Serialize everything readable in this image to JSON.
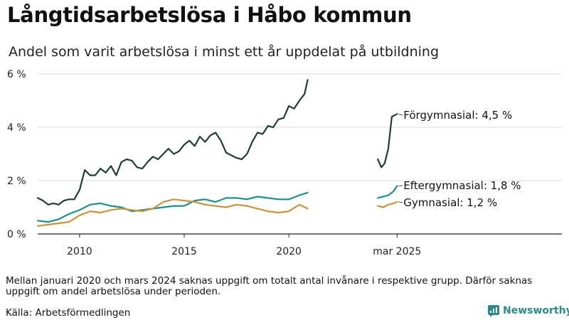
{
  "title": "Långtidsarbetslösa i Håbo kommun",
  "subtitle": "Andel som varit arbetslösa i minst ett år uppdelat på utbildning",
  "note": "Mellan januari 2020 och mars 2024 saknas uppgift om totalt antal invånare i respektive grupp. Därför saknas uppgift om andel arbetslösa under perioden.",
  "source": "Källa: Arbetsförmedlingen",
  "brand": {
    "name": "Newsworthy",
    "icon": "newsworthy-logo-icon"
  },
  "colors": {
    "forgymnasial": "#1f3d36",
    "eftergymnasial": "#1a9088",
    "gymnasial": "#c9943b",
    "grid": "#dcdcdc",
    "axis": "#222222"
  },
  "chart_data": {
    "type": "line",
    "title": "Långtidsarbetslösa i Håbo kommun",
    "subtitle": "Andel som varit arbetslösa i minst ett år uppdelat på utbildning",
    "xlabel": "",
    "ylabel": "",
    "ylim": [
      0,
      6
    ],
    "xlim": [
      2008.0,
      2025.5
    ],
    "y_ticks": [
      0,
      2,
      4,
      6
    ],
    "y_tick_labels": [
      "0 %",
      "2 %",
      "4 %",
      "6 %"
    ],
    "x_ticks": [
      2010,
      2015,
      2020,
      2025.17
    ],
    "x_tick_labels": [
      "2010",
      "2015",
      "2020",
      "mar 2025"
    ],
    "grid": "horizontal",
    "legend": "end-labels",
    "series": [
      {
        "name": "Förgymnasial",
        "end_label": "Förgymnasial: 4,5 %",
        "color": "#1f3d36",
        "segments": [
          [
            [
              2008.0,
              1.35
            ],
            [
              2008.25,
              1.25
            ],
            [
              2008.5,
              1.1
            ],
            [
              2008.75,
              1.15
            ],
            [
              2009.0,
              1.1
            ],
            [
              2009.25,
              1.25
            ],
            [
              2009.5,
              1.3
            ],
            [
              2009.75,
              1.3
            ],
            [
              2010.0,
              1.65
            ],
            [
              2010.25,
              2.4
            ],
            [
              2010.5,
              2.2
            ],
            [
              2010.75,
              2.2
            ],
            [
              2011.0,
              2.45
            ],
            [
              2011.25,
              2.3
            ],
            [
              2011.5,
              2.55
            ],
            [
              2011.75,
              2.2
            ],
            [
              2012.0,
              2.7
            ],
            [
              2012.25,
              2.8
            ],
            [
              2012.5,
              2.75
            ],
            [
              2012.75,
              2.5
            ],
            [
              2013.0,
              2.45
            ],
            [
              2013.25,
              2.7
            ],
            [
              2013.5,
              2.9
            ],
            [
              2013.75,
              2.8
            ],
            [
              2014.0,
              3.0
            ],
            [
              2014.25,
              3.2
            ],
            [
              2014.5,
              3.0
            ],
            [
              2014.75,
              3.1
            ],
            [
              2015.0,
              3.35
            ],
            [
              2015.25,
              3.5
            ],
            [
              2015.5,
              3.3
            ],
            [
              2015.75,
              3.65
            ],
            [
              2016.0,
              3.45
            ],
            [
              2016.25,
              3.7
            ],
            [
              2016.5,
              3.8
            ],
            [
              2016.75,
              3.5
            ],
            [
              2017.0,
              3.05
            ],
            [
              2017.25,
              2.95
            ],
            [
              2017.5,
              2.85
            ],
            [
              2017.75,
              2.8
            ],
            [
              2018.0,
              3.0
            ],
            [
              2018.25,
              3.45
            ],
            [
              2018.5,
              3.8
            ],
            [
              2018.75,
              3.75
            ],
            [
              2019.0,
              4.05
            ],
            [
              2019.25,
              4.0
            ],
            [
              2019.5,
              4.3
            ],
            [
              2019.75,
              4.35
            ],
            [
              2020.0,
              4.8
            ],
            [
              2020.25,
              4.7
            ],
            [
              2020.5,
              5.0
            ],
            [
              2020.75,
              5.25
            ],
            [
              2020.9,
              5.78
            ]
          ],
          [
            [
              2024.25,
              2.8
            ],
            [
              2024.42,
              2.5
            ],
            [
              2024.58,
              2.65
            ],
            [
              2024.75,
              3.2
            ],
            [
              2024.92,
              4.4
            ],
            [
              2025.17,
              4.5
            ]
          ]
        ]
      },
      {
        "name": "Eftergymnasial",
        "end_label": "Eftergymnasial: 1,8 %",
        "color": "#1a9088",
        "segments": [
          [
            [
              2008.0,
              0.5
            ],
            [
              2008.5,
              0.45
            ],
            [
              2009.0,
              0.55
            ],
            [
              2009.5,
              0.75
            ],
            [
              2010.0,
              0.9
            ],
            [
              2010.5,
              1.1
            ],
            [
              2011.0,
              1.15
            ],
            [
              2011.5,
              1.05
            ],
            [
              2012.0,
              1.0
            ],
            [
              2012.5,
              0.85
            ],
            [
              2013.0,
              0.9
            ],
            [
              2013.5,
              0.95
            ],
            [
              2014.0,
              1.0
            ],
            [
              2014.5,
              1.05
            ],
            [
              2015.0,
              1.05
            ],
            [
              2015.5,
              1.25
            ],
            [
              2016.0,
              1.3
            ],
            [
              2016.5,
              1.2
            ],
            [
              2017.0,
              1.35
            ],
            [
              2017.5,
              1.35
            ],
            [
              2018.0,
              1.3
            ],
            [
              2018.5,
              1.4
            ],
            [
              2019.0,
              1.35
            ],
            [
              2019.5,
              1.3
            ],
            [
              2020.0,
              1.3
            ],
            [
              2020.5,
              1.45
            ],
            [
              2020.9,
              1.55
            ]
          ],
          [
            [
              2024.25,
              1.35
            ],
            [
              2024.5,
              1.4
            ],
            [
              2024.75,
              1.45
            ],
            [
              2025.0,
              1.6
            ],
            [
              2025.17,
              1.8
            ]
          ]
        ]
      },
      {
        "name": "Gymnasial",
        "end_label": "Gymnasial: 1,2 %",
        "color": "#c9943b",
        "segments": [
          [
            [
              2008.0,
              0.3
            ],
            [
              2008.5,
              0.35
            ],
            [
              2009.0,
              0.4
            ],
            [
              2009.5,
              0.45
            ],
            [
              2010.0,
              0.7
            ],
            [
              2010.5,
              0.85
            ],
            [
              2011.0,
              0.8
            ],
            [
              2011.5,
              0.9
            ],
            [
              2012.0,
              0.95
            ],
            [
              2012.5,
              0.9
            ],
            [
              2013.0,
              0.85
            ],
            [
              2013.5,
              0.95
            ],
            [
              2014.0,
              1.2
            ],
            [
              2014.5,
              1.3
            ],
            [
              2015.0,
              1.25
            ],
            [
              2015.5,
              1.2
            ],
            [
              2016.0,
              1.1
            ],
            [
              2016.5,
              1.05
            ],
            [
              2017.0,
              1.0
            ],
            [
              2017.5,
              1.1
            ],
            [
              2018.0,
              1.05
            ],
            [
              2018.5,
              0.95
            ],
            [
              2019.0,
              0.85
            ],
            [
              2019.5,
              0.8
            ],
            [
              2020.0,
              0.85
            ],
            [
              2020.5,
              1.1
            ],
            [
              2020.9,
              0.95
            ]
          ],
          [
            [
              2024.25,
              1.05
            ],
            [
              2024.5,
              1.0
            ],
            [
              2024.75,
              1.1
            ],
            [
              2025.0,
              1.15
            ],
            [
              2025.17,
              1.2
            ]
          ]
        ]
      }
    ]
  }
}
